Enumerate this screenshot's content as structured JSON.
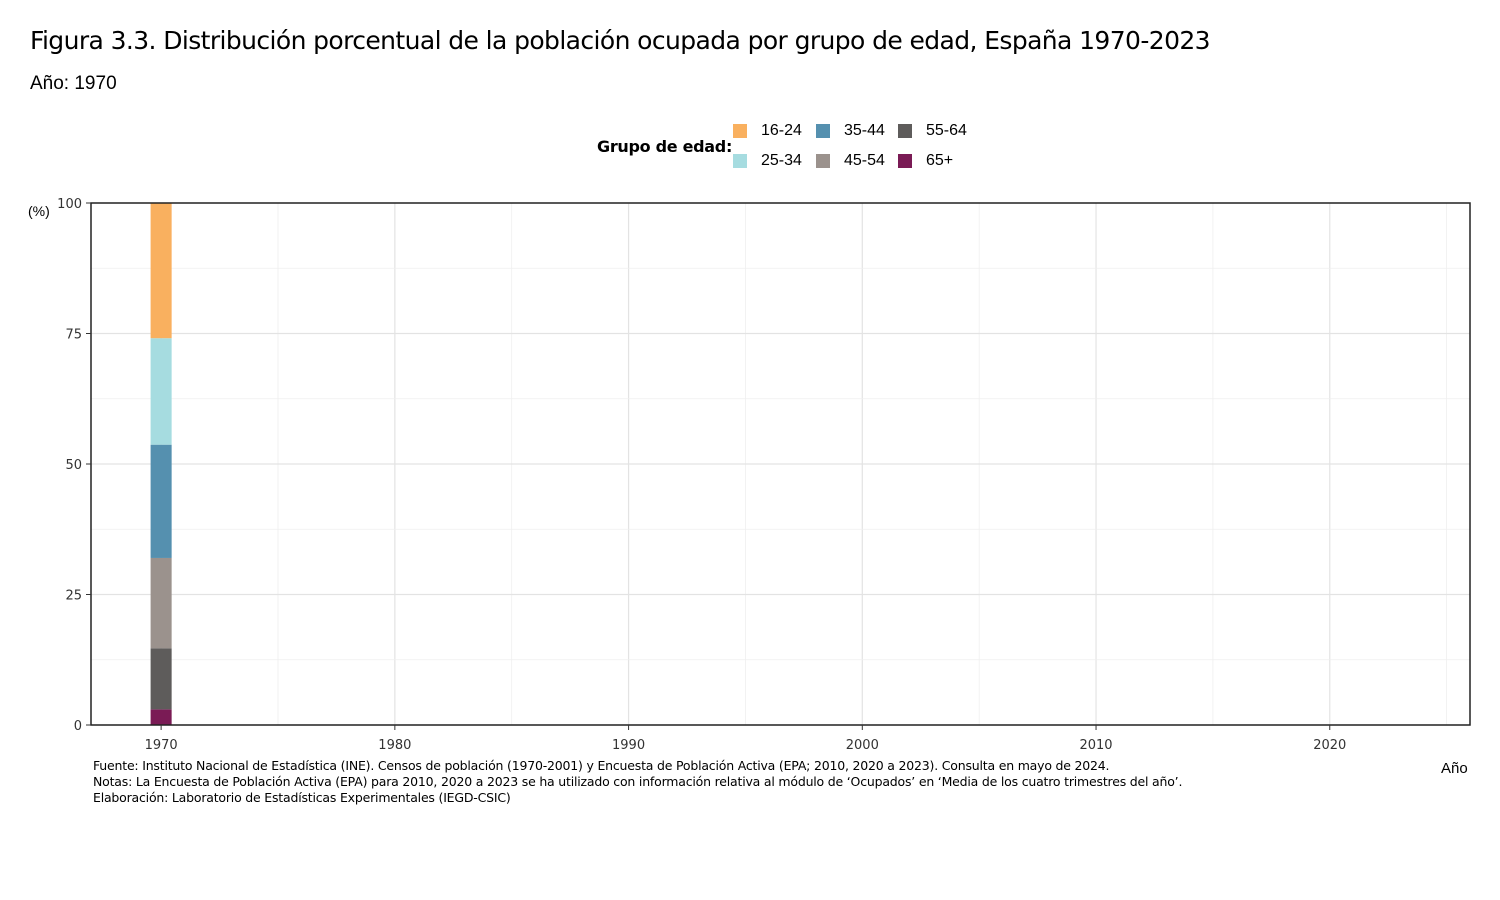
{
  "title": "Figura 3.3. Distribución porcentual de la población ocupada por grupo de edad, España 1970-2023",
  "subtitle": "Año: 1970",
  "legend": {
    "title": "Grupo de edad:",
    "items": [
      {
        "label": "16-24",
        "color": "#F9B05F"
      },
      {
        "label": "35-44",
        "color": "#5590AF"
      },
      {
        "label": "55-64",
        "color": "#5E5C5B"
      },
      {
        "label": "25-34",
        "color": "#A6DCE0"
      },
      {
        "label": "45-54",
        "color": "#9B928D"
      },
      {
        "label": "65+",
        "color": "#7A1B55"
      }
    ]
  },
  "notes": {
    "source": "Fuente: Instituto Nacional de Estadística (INE). Censos de población (1970-2001) y Encuesta de Población Activa (EPA; 2010, 2020 a 2023). Consulta en mayo de 2024.",
    "notes": "Notas: La Encuesta de Población Activa (EPA) para 2010, 2020 a 2023 se ha utilizado con información relativa al módulo de ‘Ocupados’ en ‘Media de los cuatro trimestres del año’.",
    "credit": "Elaboración: Laboratorio de Estadísticas Experimentales (IEGD-CSIC)"
  },
  "chart_data": {
    "type": "bar",
    "stacked": true,
    "title": "Figura 3.3. Distribución porcentual de la población ocupada por grupo de edad, España 1970-2023",
    "subtitle": "Año: 1970",
    "xlabel": "Año",
    "ylabel": "(%)",
    "x": [
      1970
    ],
    "xlim": [
      1967,
      2026
    ],
    "ylim": [
      0,
      100
    ],
    "xticks": [
      1970,
      1980,
      1990,
      2000,
      2010,
      2020
    ],
    "yticks": [
      0,
      25,
      50,
      75,
      100
    ],
    "grid": true,
    "legend_position": "top",
    "series": [
      {
        "name": "65+",
        "color": "#7A1B55",
        "values": [
          3
        ]
      },
      {
        "name": "55-64",
        "color": "#5E5C5B",
        "values": [
          11.7
        ]
      },
      {
        "name": "45-54",
        "color": "#9B928D",
        "values": [
          17.3
        ]
      },
      {
        "name": "35-44",
        "color": "#5590AF",
        "values": [
          21.7
        ]
      },
      {
        "name": "25-34",
        "color": "#A6DCE0",
        "values": [
          20.4
        ]
      },
      {
        "name": "16-24",
        "color": "#F9B05F",
        "values": [
          25.9
        ]
      }
    ]
  }
}
